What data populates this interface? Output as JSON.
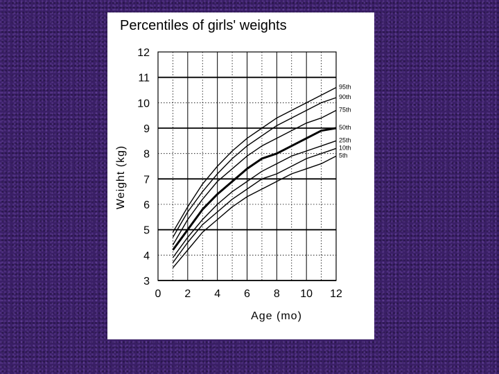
{
  "chart_data": {
    "type": "line",
    "title": "Percentiles of girls' weights",
    "xlabel": "Age (mo)",
    "ylabel": "Weight (kg)",
    "xlim": [
      0,
      12
    ],
    "ylim": [
      3,
      12
    ],
    "x_ticks": [
      0,
      2,
      4,
      6,
      8,
      10,
      12
    ],
    "y_ticks": [
      3,
      4,
      5,
      6,
      7,
      8,
      9,
      10,
      11,
      12
    ],
    "grid": true,
    "x": [
      1,
      2,
      3,
      4,
      5,
      6,
      7,
      8,
      9,
      10,
      11,
      12
    ],
    "series": [
      {
        "name": "95th",
        "values": [
          4.9,
          5.9,
          6.8,
          7.5,
          8.1,
          8.6,
          9.0,
          9.4,
          9.7,
          10.0,
          10.3,
          10.6
        ]
      },
      {
        "name": "90th",
        "values": [
          4.7,
          5.7,
          6.5,
          7.2,
          7.8,
          8.3,
          8.7,
          9.1,
          9.4,
          9.7,
          10.0,
          10.2
        ]
      },
      {
        "name": "75th",
        "values": [
          4.4,
          5.4,
          6.2,
          6.9,
          7.4,
          7.9,
          8.3,
          8.6,
          8.9,
          9.2,
          9.4,
          9.7
        ]
      },
      {
        "name": "50th",
        "values": [
          4.2,
          5.0,
          5.8,
          6.4,
          6.9,
          7.4,
          7.8,
          8.0,
          8.3,
          8.6,
          8.9,
          9.0
        ]
      },
      {
        "name": "25th",
        "values": [
          3.9,
          4.7,
          5.4,
          6.0,
          6.5,
          6.9,
          7.3,
          7.6,
          7.9,
          8.1,
          8.3,
          8.5
        ]
      },
      {
        "name": "10th",
        "values": [
          3.7,
          4.5,
          5.2,
          5.7,
          6.2,
          6.6,
          7.0,
          7.2,
          7.5,
          7.8,
          8.0,
          8.2
        ]
      },
      {
        "name": "5th",
        "values": [
          3.5,
          4.2,
          4.9,
          5.4,
          5.9,
          6.3,
          6.6,
          6.9,
          7.2,
          7.4,
          7.6,
          7.9
        ]
      }
    ],
    "highlight_series": "50th",
    "background": "#3a1f66",
    "panel_color": "#ffffff",
    "line_color": "#000000"
  }
}
